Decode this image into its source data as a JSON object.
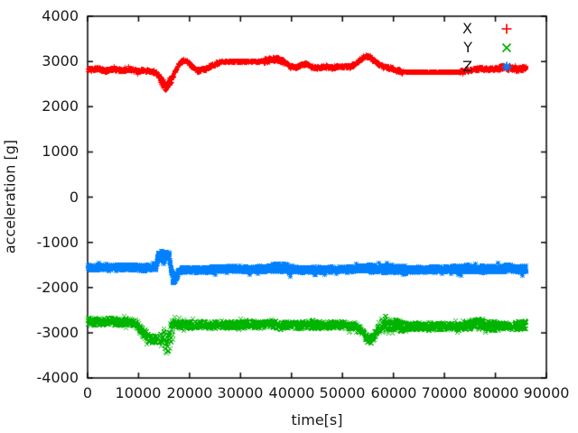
{
  "chart_data": {
    "type": "scatter",
    "title": "",
    "xlabel": "time[s]",
    "ylabel": "acceleration [g]",
    "xlim": [
      0,
      90000
    ],
    "ylim": [
      -4000,
      4000
    ],
    "x_ticks": [
      0,
      10000,
      20000,
      30000,
      40000,
      50000,
      60000,
      70000,
      80000,
      90000
    ],
    "y_ticks": [
      -4000,
      -3000,
      -2000,
      -1000,
      0,
      1000,
      2000,
      3000,
      4000
    ],
    "grid": false,
    "background": "#ffffff",
    "axis_color": "#000000",
    "legend_position": "top-right-inside",
    "sample_step": 35,
    "t_end": 86000,
    "series": [
      {
        "name": "X",
        "marker": "plus",
        "color": "#ff0000",
        "noise_amp": 40,
        "noise_spans": [
          {
            "from": 13800,
            "to": 16500,
            "amp": 95
          },
          {
            "from": 26000,
            "to": 34000,
            "amp": 22
          },
          {
            "from": 34500,
            "to": 38500,
            "amp": 60
          },
          {
            "from": 62000,
            "to": 72800,
            "amp": 10
          },
          {
            "from": 80500,
            "to": 86000,
            "amp": 55
          }
        ],
        "keypoints": [
          [
            0,
            2820
          ],
          [
            2000,
            2845
          ],
          [
            3500,
            2800
          ],
          [
            5000,
            2835
          ],
          [
            6500,
            2815
          ],
          [
            8000,
            2830
          ],
          [
            9500,
            2795
          ],
          [
            11000,
            2815
          ],
          [
            12500,
            2790
          ],
          [
            13500,
            2750
          ],
          [
            14300,
            2600
          ],
          [
            15200,
            2450
          ],
          [
            16000,
            2520
          ],
          [
            16800,
            2700
          ],
          [
            17600,
            2900
          ],
          [
            18600,
            3030
          ],
          [
            19300,
            3040
          ],
          [
            20300,
            2900
          ],
          [
            21500,
            2800
          ],
          [
            23000,
            2830
          ],
          [
            24500,
            2930
          ],
          [
            26000,
            2995
          ],
          [
            28000,
            3005
          ],
          [
            31000,
            3008
          ],
          [
            33500,
            3005
          ],
          [
            35000,
            3030
          ],
          [
            36500,
            3055
          ],
          [
            37800,
            3040
          ],
          [
            38800,
            2970
          ],
          [
            39800,
            2900
          ],
          [
            40800,
            2870
          ],
          [
            41800,
            2925
          ],
          [
            42800,
            2950
          ],
          [
            43800,
            2890
          ],
          [
            45000,
            2865
          ],
          [
            46500,
            2885
          ],
          [
            48000,
            2870
          ],
          [
            49500,
            2900
          ],
          [
            51000,
            2890
          ],
          [
            52200,
            2930
          ],
          [
            53300,
            3030
          ],
          [
            54300,
            3120
          ],
          [
            55300,
            3105
          ],
          [
            56300,
            3000
          ],
          [
            57300,
            2930
          ],
          [
            58300,
            2885
          ],
          [
            59500,
            2855
          ],
          [
            60500,
            2810
          ],
          [
            61500,
            2785
          ],
          [
            62500,
            2772
          ],
          [
            72500,
            2772
          ],
          [
            74000,
            2795
          ],
          [
            75500,
            2825
          ],
          [
            77000,
            2850
          ],
          [
            78500,
            2830
          ],
          [
            80000,
            2845
          ],
          [
            81500,
            2880
          ],
          [
            83000,
            2845
          ],
          [
            84500,
            2830
          ],
          [
            86000,
            2875
          ]
        ]
      },
      {
        "name": "Y",
        "marker": "cross",
        "color": "#00b400",
        "noise_amp": 80,
        "noise_spans": [
          {
            "from": 9400,
            "to": 14600,
            "amp": 105
          },
          {
            "from": 14800,
            "to": 16800,
            "amp": 270
          },
          {
            "from": 57000,
            "to": 62000,
            "amp": 125
          },
          {
            "from": 74500,
            "to": 80500,
            "amp": 110
          },
          {
            "from": 84000,
            "to": 86000,
            "amp": 100
          }
        ],
        "keypoints": [
          [
            0,
            -2735
          ],
          [
            2000,
            -2755
          ],
          [
            4000,
            -2730
          ],
          [
            6000,
            -2760
          ],
          [
            8000,
            -2745
          ],
          [
            9400,
            -2790
          ],
          [
            10500,
            -2950
          ],
          [
            11500,
            -3060
          ],
          [
            12500,
            -3140
          ],
          [
            13500,
            -3165
          ],
          [
            14300,
            -3110
          ],
          [
            15000,
            -3175
          ],
          [
            15800,
            -3195
          ],
          [
            16400,
            -2950
          ],
          [
            17000,
            -2780
          ],
          [
            18000,
            -2810
          ],
          [
            20000,
            -2825
          ],
          [
            22000,
            -2805
          ],
          [
            24000,
            -2820
          ],
          [
            26000,
            -2810
          ],
          [
            28000,
            -2825
          ],
          [
            30000,
            -2815
          ],
          [
            32000,
            -2800
          ],
          [
            34000,
            -2825
          ],
          [
            36000,
            -2780
          ],
          [
            37500,
            -2855
          ],
          [
            39000,
            -2805
          ],
          [
            41000,
            -2835
          ],
          [
            43000,
            -2810
          ],
          [
            45000,
            -2830
          ],
          [
            47000,
            -2815
          ],
          [
            49000,
            -2810
          ],
          [
            51000,
            -2830
          ],
          [
            52500,
            -2850
          ],
          [
            53800,
            -2960
          ],
          [
            55000,
            -3160
          ],
          [
            55800,
            -3130
          ],
          [
            56600,
            -2940
          ],
          [
            57400,
            -2845
          ],
          [
            58800,
            -2800
          ],
          [
            60000,
            -2825
          ],
          [
            61500,
            -2845
          ],
          [
            63000,
            -2855
          ],
          [
            65000,
            -2845
          ],
          [
            67000,
            -2865
          ],
          [
            69000,
            -2850
          ],
          [
            71000,
            -2845
          ],
          [
            73000,
            -2860
          ],
          [
            75000,
            -2815
          ],
          [
            76500,
            -2790
          ],
          [
            78000,
            -2840
          ],
          [
            80000,
            -2850
          ],
          [
            82000,
            -2835
          ],
          [
            84000,
            -2845
          ],
          [
            86000,
            -2815
          ]
        ]
      },
      {
        "name": "Z",
        "marker": "asterisk",
        "color": "#0080ff",
        "noise_amp": 65,
        "noise_spans": [
          {
            "from": 13750,
            "to": 16000,
            "amp": 80
          },
          {
            "from": 16300,
            "to": 17500,
            "amp": 80
          },
          {
            "from": 36200,
            "to": 40200,
            "amp": 95
          },
          {
            "from": 55000,
            "to": 62500,
            "amp": 88
          },
          {
            "from": 72000,
            "to": 86000,
            "amp": 82
          }
        ],
        "keypoints": [
          [
            0,
            -1555
          ],
          [
            3000,
            -1550
          ],
          [
            6000,
            -1555
          ],
          [
            9000,
            -1550
          ],
          [
            12000,
            -1555
          ],
          [
            13400,
            -1550
          ],
          [
            13750,
            -1280
          ],
          [
            14550,
            -1268
          ],
          [
            14850,
            -1470
          ],
          [
            15050,
            -1285
          ],
          [
            15900,
            -1270
          ],
          [
            16250,
            -1560
          ],
          [
            16700,
            -1810
          ],
          [
            17100,
            -1830
          ],
          [
            17600,
            -1660
          ],
          [
            18200,
            -1600
          ],
          [
            20000,
            -1605
          ],
          [
            22000,
            -1598
          ],
          [
            24000,
            -1602
          ],
          [
            26000,
            -1585
          ],
          [
            28000,
            -1572
          ],
          [
            30000,
            -1588
          ],
          [
            32000,
            -1592
          ],
          [
            34000,
            -1582
          ],
          [
            36000,
            -1572
          ],
          [
            37500,
            -1552
          ],
          [
            38700,
            -1565
          ],
          [
            40000,
            -1592
          ],
          [
            42000,
            -1602
          ],
          [
            44000,
            -1598
          ],
          [
            46000,
            -1602
          ],
          [
            48000,
            -1596
          ],
          [
            50000,
            -1590
          ],
          [
            52000,
            -1582
          ],
          [
            54000,
            -1562
          ],
          [
            56000,
            -1576
          ],
          [
            58000,
            -1590
          ],
          [
            60000,
            -1582
          ],
          [
            62000,
            -1596
          ],
          [
            64000,
            -1600
          ],
          [
            66000,
            -1596
          ],
          [
            68000,
            -1590
          ],
          [
            70000,
            -1586
          ],
          [
            72000,
            -1580
          ],
          [
            74000,
            -1572
          ],
          [
            76000,
            -1576
          ],
          [
            78000,
            -1580
          ],
          [
            80000,
            -1574
          ],
          [
            82000,
            -1570
          ],
          [
            84000,
            -1574
          ],
          [
            86000,
            -1580
          ]
        ]
      }
    ]
  }
}
